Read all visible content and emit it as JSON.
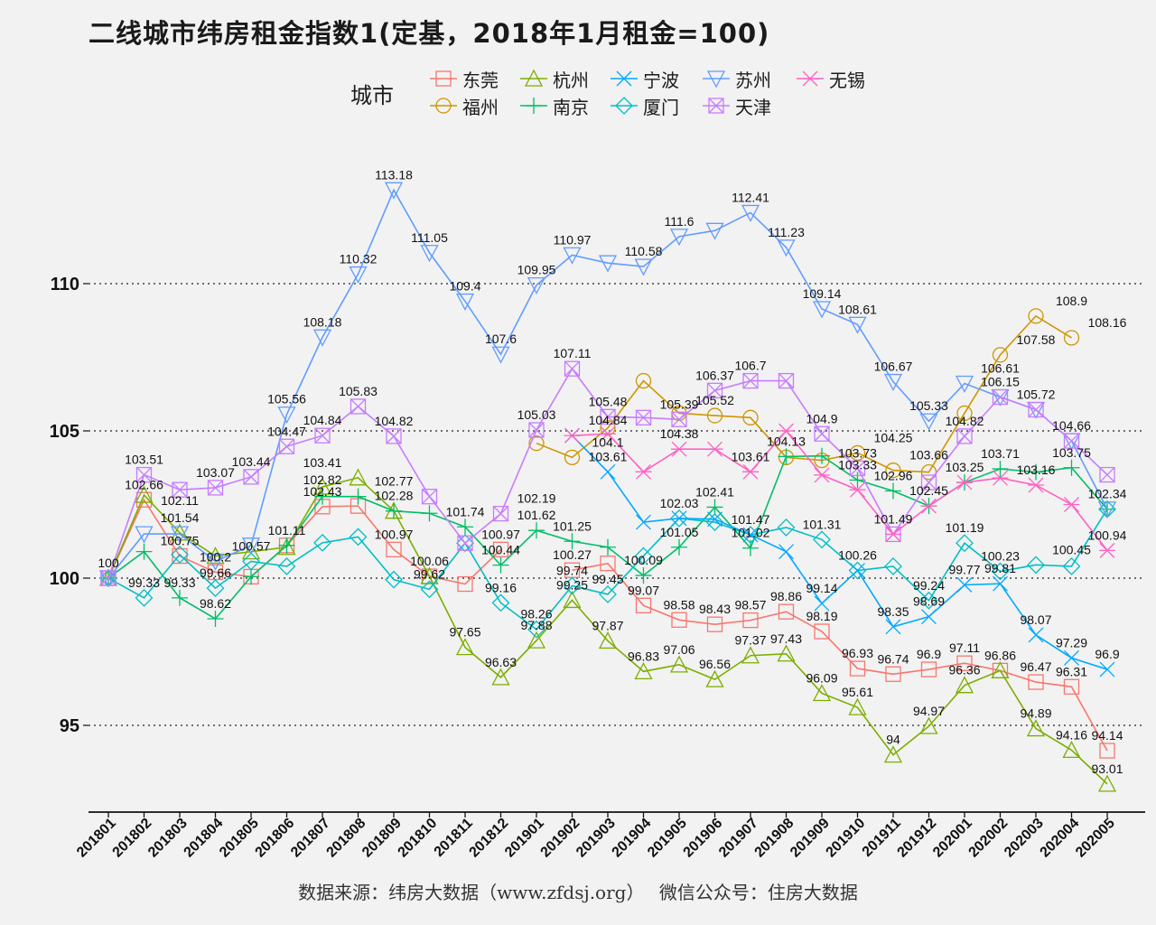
{
  "title": "二线城市纬房租金指数1(定基，2018年1月租金=100)",
  "source": "数据来源：纬房大数据（www.zfdsj.org）　 微信公众号：住房大数据",
  "legend_title": "城市",
  "chart_data": {
    "type": "line",
    "title": "二线城市纬房租金指数1(定基，2018年1月租金=100)",
    "xlabel": "",
    "ylabel": "",
    "ylim": [
      92,
      114
    ],
    "yticks": [
      95,
      100,
      105,
      110
    ],
    "grid": "horizontal dotted",
    "legend_position": "top",
    "x": [
      "201801",
      "201802",
      "201803",
      "201804",
      "201805",
      "201806",
      "201807",
      "201808",
      "201809",
      "201810",
      "201811",
      "201812",
      "201901",
      "201902",
      "201903",
      "201904",
      "201905",
      "201906",
      "201907",
      "201908",
      "201909",
      "201910",
      "201911",
      "201912",
      "202001",
      "202002",
      "202003",
      "202004",
      "202005"
    ],
    "series": [
      {
        "name": "东莞",
        "color": "#F8766D",
        "marker": "square",
        "values": [
          100,
          102.66,
          100.75,
          100.2,
          100.05,
          101.11,
          102.43,
          102.45,
          100.97,
          100.06,
          99.8,
          100.97,
          null,
          100.27,
          100.5,
          99.07,
          98.58,
          98.43,
          98.57,
          98.86,
          98.19,
          96.93,
          96.74,
          96.9,
          97.11,
          96.86,
          96.47,
          96.31,
          94.14
        ]
      },
      {
        "name": "福州",
        "color": "#CD9600",
        "marker": "circle",
        "values": [
          null,
          null,
          null,
          null,
          null,
          null,
          null,
          null,
          null,
          null,
          null,
          null,
          104.58,
          104.1,
          105.1,
          106.7,
          105.6,
          105.52,
          105.45,
          104.1,
          104.0,
          104.25,
          103.66,
          103.6,
          105.6,
          107.58,
          108.9,
          108.16,
          null
        ]
      },
      {
        "name": "杭州",
        "color": "#7CAE00",
        "marker": "triangle",
        "values": [
          100,
          102.82,
          101.54,
          100.75,
          100.9,
          101.05,
          103.1,
          103.41,
          102.28,
          100.06,
          97.65,
          96.63,
          97.88,
          99.25,
          97.87,
          96.83,
          97.06,
          96.56,
          97.37,
          97.43,
          96.09,
          95.61,
          94.0,
          94.97,
          96.36,
          96.86,
          94.89,
          94.16,
          93.01
        ]
      },
      {
        "name": "南京",
        "color": "#00BE67",
        "marker": "plus",
        "values": [
          100,
          100.9,
          99.33,
          98.62,
          100.05,
          101.11,
          102.77,
          102.77,
          102.28,
          102.2,
          101.74,
          100.44,
          101.62,
          101.25,
          101.05,
          100.09,
          101.05,
          102.41,
          101.02,
          104.13,
          104.15,
          103.33,
          102.96,
          102.45,
          103.25,
          103.71,
          103.6,
          103.75,
          102.34
        ]
      },
      {
        "name": "厦门",
        "color": "#00BFC4",
        "marker": "diamond",
        "values": [
          100,
          99.33,
          100.8,
          99.66,
          100.57,
          100.4,
          101.2,
          101.4,
          99.95,
          99.62,
          101.19,
          99.16,
          98.26,
          99.74,
          99.45,
          100.75,
          102.03,
          101.9,
          101.47,
          101.72,
          101.31,
          100.26,
          100.4,
          99.24,
          101.19,
          100.23,
          100.45,
          100.4,
          102.34
        ]
      },
      {
        "name": "宁波",
        "color": "#00A9FF",
        "marker": "x",
        "values": [
          null,
          null,
          null,
          null,
          null,
          null,
          null,
          null,
          null,
          null,
          null,
          null,
          null,
          104.84,
          103.61,
          101.9,
          102.03,
          102.0,
          101.47,
          100.9,
          99.14,
          100.26,
          98.35,
          98.69,
          99.77,
          99.81,
          98.07,
          97.29,
          96.9
        ]
      },
      {
        "name": "苏州",
        "color": "#619CFF",
        "marker": "triangle-down",
        "values": [
          100,
          101.5,
          101.5,
          100.57,
          101.11,
          105.56,
          108.18,
          110.32,
          113.18,
          111.05,
          109.4,
          107.6,
          109.95,
          110.97,
          110.7,
          110.58,
          111.6,
          111.8,
          112.41,
          111.23,
          109.14,
          108.61,
          106.67,
          105.33,
          106.61,
          106.15,
          105.72,
          104.66,
          102.34
        ]
      },
      {
        "name": "天津",
        "color": "#C77CFF",
        "marker": "square-x",
        "values": [
          100,
          103.51,
          103.0,
          103.07,
          103.44,
          104.47,
          104.84,
          105.83,
          104.82,
          102.77,
          101.19,
          102.19,
          105.03,
          107.11,
          105.48,
          105.45,
          105.39,
          106.37,
          106.7,
          106.7,
          104.9,
          103.73,
          101.49,
          103.25,
          104.82,
          106.15,
          105.72,
          104.66,
          103.51
        ]
      },
      {
        "name": "无锡",
        "color": "#FF61C3",
        "marker": "asterisk",
        "values": [
          null,
          null,
          null,
          null,
          null,
          null,
          null,
          null,
          null,
          null,
          null,
          null,
          null,
          104.84,
          104.9,
          103.61,
          104.38,
          104.38,
          103.61,
          105.0,
          103.5,
          103.0,
          101.49,
          102.45,
          103.25,
          103.4,
          103.16,
          102.5,
          100.94
        ]
      }
    ],
    "data_labels": [
      {
        "x": "201801",
        "text": "100",
        "y": 100
      },
      {
        "x": "201802",
        "text": "103.51",
        "y": 103.51
      },
      {
        "x": "201802",
        "text": "102.66",
        "y": 102.66
      },
      {
        "x": "201802",
        "text": "99.33",
        "y": 99.33
      },
      {
        "x": "201803",
        "text": "102.11",
        "y": 102.11
      },
      {
        "x": "201803",
        "text": "101.54",
        "y": 101.54
      },
      {
        "x": "201803",
        "text": "100.75",
        "y": 100.75
      },
      {
        "x": "201803",
        "text": "99.33",
        "y": 99.33
      },
      {
        "x": "201804",
        "text": "103.07",
        "y": 103.07
      },
      {
        "x": "201804",
        "text": "100.2",
        "y": 100.2
      },
      {
        "x": "201804",
        "text": "99.66",
        "y": 99.66
      },
      {
        "x": "201804",
        "text": "98.62",
        "y": 98.62
      },
      {
        "x": "201805",
        "text": "103.44",
        "y": 103.44
      },
      {
        "x": "201805",
        "text": "100.57",
        "y": 100.57
      },
      {
        "x": "201806",
        "text": "105.56",
        "y": 105.56
      },
      {
        "x": "201806",
        "text": "104.47",
        "y": 104.47
      },
      {
        "x": "201806",
        "text": "101.11",
        "y": 101.11
      },
      {
        "x": "201807",
        "text": "108.18",
        "y": 108.18
      },
      {
        "x": "201807",
        "text": "104.84",
        "y": 104.84
      },
      {
        "x": "201807",
        "text": "103.41",
        "y": 103.41
      },
      {
        "x": "201807",
        "text": "102.82",
        "y": 102.82
      },
      {
        "x": "201807",
        "text": "102.43",
        "y": 102.43
      },
      {
        "x": "201808",
        "text": "110.32",
        "y": 110.32
      },
      {
        "x": "201808",
        "text": "105.83",
        "y": 105.83
      },
      {
        "x": "201809",
        "text": "113.18",
        "y": 113.18
      },
      {
        "x": "201809",
        "text": "104.82",
        "y": 104.82
      },
      {
        "x": "201809",
        "text": "102.77",
        "y": 102.77
      },
      {
        "x": "201809",
        "text": "102.28",
        "y": 102.28
      },
      {
        "x": "201809",
        "text": "100.97",
        "y": 100.97
      },
      {
        "x": "201810",
        "text": "111.05",
        "y": 111.05
      },
      {
        "x": "201810",
        "text": "100.06",
        "y": 100.06
      },
      {
        "x": "201810",
        "text": "99.62",
        "y": 99.62
      },
      {
        "x": "201811",
        "text": "109.4",
        "y": 109.4
      },
      {
        "x": "201811",
        "text": "101.74",
        "y": 101.74
      },
      {
        "x": "201811",
        "text": "97.65",
        "y": 97.65
      },
      {
        "x": "201812",
        "text": "107.6",
        "y": 107.6
      },
      {
        "x": "201812",
        "text": "100.97",
        "y": 100.97
      },
      {
        "x": "201812",
        "text": "100.44",
        "y": 100.44
      },
      {
        "x": "201812",
        "text": "99.16",
        "y": 99.16
      },
      {
        "x": "201812",
        "text": "96.63",
        "y": 96.63
      },
      {
        "x": "201901",
        "text": "109.95",
        "y": 109.95
      },
      {
        "x": "201901",
        "text": "105.03",
        "y": 105.03
      },
      {
        "x": "201901",
        "text": "102.19",
        "y": 102.19
      },
      {
        "x": "201901",
        "text": "101.62",
        "y": 101.62
      },
      {
        "x": "201901",
        "text": "98.26",
        "y": 98.26
      },
      {
        "x": "201901",
        "text": "97.88",
        "y": 97.88
      },
      {
        "x": "201902",
        "text": "110.97",
        "y": 110.97
      },
      {
        "x": "201902",
        "text": "107.11",
        "y": 107.11
      },
      {
        "x": "201902",
        "text": "101.25",
        "y": 101.25
      },
      {
        "x": "201902",
        "text": "100.27",
        "y": 100.27
      },
      {
        "x": "201902",
        "text": "99.74",
        "y": 99.74
      },
      {
        "x": "201902",
        "text": "99.25",
        "y": 99.25
      },
      {
        "x": "201903",
        "text": "105.48",
        "y": 105.48
      },
      {
        "x": "201903",
        "text": "104.84",
        "y": 104.84
      },
      {
        "x": "201903",
        "text": "104.1",
        "y": 104.1
      },
      {
        "x": "201903",
        "text": "103.61",
        "y": 103.61
      },
      {
        "x": "201903",
        "text": "99.45",
        "y": 99.45
      },
      {
        "x": "201903",
        "text": "97.87",
        "y": 97.87
      },
      {
        "x": "201904",
        "text": "110.58",
        "y": 110.58
      },
      {
        "x": "201904",
        "text": "100.09",
        "y": 100.09
      },
      {
        "x": "201904",
        "text": "99.07",
        "y": 99.07
      },
      {
        "x": "201904",
        "text": "96.83",
        "y": 96.83
      },
      {
        "x": "201905",
        "text": "111.6",
        "y": 111.6
      },
      {
        "x": "201905",
        "text": "105.39",
        "y": 105.39
      },
      {
        "x": "201905",
        "text": "104.38",
        "y": 104.38
      },
      {
        "x": "201905",
        "text": "102.03",
        "y": 102.03
      },
      {
        "x": "201905",
        "text": "101.05",
        "y": 101.05
      },
      {
        "x": "201905",
        "text": "98.58",
        "y": 98.58
      },
      {
        "x": "201905",
        "text": "97.06",
        "y": 97.06
      },
      {
        "x": "201906",
        "text": "106.37",
        "y": 106.37
      },
      {
        "x": "201906",
        "text": "105.52",
        "y": 105.52
      },
      {
        "x": "201906",
        "text": "102.41",
        "y": 102.41
      },
      {
        "x": "201906",
        "text": "98.43",
        "y": 98.43
      },
      {
        "x": "201906",
        "text": "96.56",
        "y": 96.56
      },
      {
        "x": "201907",
        "text": "112.41",
        "y": 112.41
      },
      {
        "x": "201907",
        "text": "106.7",
        "y": 106.7
      },
      {
        "x": "201907",
        "text": "103.61",
        "y": 103.61
      },
      {
        "x": "201907",
        "text": "101.47",
        "y": 101.47
      },
      {
        "x": "201907",
        "text": "101.02",
        "y": 101.02
      },
      {
        "x": "201907",
        "text": "98.57",
        "y": 98.57
      },
      {
        "x": "201907",
        "text": "97.37",
        "y": 97.37
      },
      {
        "x": "201908",
        "text": "111.23",
        "y": 111.23
      },
      {
        "x": "201908",
        "text": "104.13",
        "y": 104.13
      },
      {
        "x": "201908",
        "text": "98.86",
        "y": 98.86
      },
      {
        "x": "201908",
        "text": "97.43",
        "y": 97.43
      },
      {
        "x": "201909",
        "text": "109.14",
        "y": 109.14
      },
      {
        "x": "201909",
        "text": "104.9",
        "y": 104.9
      },
      {
        "x": "201909",
        "text": "101.31",
        "y": 101.31
      },
      {
        "x": "201909",
        "text": "99.14",
        "y": 99.14
      },
      {
        "x": "201909",
        "text": "98.19",
        "y": 98.19
      },
      {
        "x": "201909",
        "text": "96.09",
        "y": 96.09
      },
      {
        "x": "201910",
        "text": "108.61",
        "y": 108.61
      },
      {
        "x": "201910",
        "text": "103.73",
        "y": 103.73
      },
      {
        "x": "201910",
        "text": "103.33",
        "y": 103.33
      },
      {
        "x": "201910",
        "text": "100.26",
        "y": 100.26
      },
      {
        "x": "201910",
        "text": "96.93",
        "y": 96.93
      },
      {
        "x": "201910",
        "text": "95.61",
        "y": 95.61
      },
      {
        "x": "201911",
        "text": "106.67",
        "y": 106.67
      },
      {
        "x": "201911",
        "text": "104.25",
        "y": 104.25
      },
      {
        "x": "201911",
        "text": "102.96",
        "y": 102.96
      },
      {
        "x": "201911",
        "text": "101.49",
        "y": 101.49
      },
      {
        "x": "201911",
        "text": "98.35",
        "y": 98.35
      },
      {
        "x": "201911",
        "text": "96.74",
        "y": 96.74
      },
      {
        "x": "201911",
        "text": "94",
        "y": 94.0
      },
      {
        "x": "201912",
        "text": "105.33",
        "y": 105.33
      },
      {
        "x": "201912",
        "text": "103.66",
        "y": 103.66
      },
      {
        "x": "201912",
        "text": "102.45",
        "y": 102.45
      },
      {
        "x": "201912",
        "text": "99.24",
        "y": 99.24
      },
      {
        "x": "201912",
        "text": "98.69",
        "y": 98.69
      },
      {
        "x": "201912",
        "text": "96.9",
        "y": 96.9
      },
      {
        "x": "201912",
        "text": "94.97",
        "y": 94.97
      },
      {
        "x": "202001",
        "text": "104.82",
        "y": 104.82
      },
      {
        "x": "202001",
        "text": "103.25",
        "y": 103.25
      },
      {
        "x": "202001",
        "text": "101.19",
        "y": 101.19
      },
      {
        "x": "202001",
        "text": "99.77",
        "y": 99.77
      },
      {
        "x": "202001",
        "text": "97.11",
        "y": 97.11
      },
      {
        "x": "202001",
        "text": "96.36",
        "y": 96.36
      },
      {
        "x": "202002",
        "text": "106.61",
        "y": 106.61
      },
      {
        "x": "202002",
        "text": "106.15",
        "y": 106.15
      },
      {
        "x": "202002",
        "text": "103.71",
        "y": 103.71
      },
      {
        "x": "202002",
        "text": "100.23",
        "y": 100.23
      },
      {
        "x": "202002",
        "text": "99.81",
        "y": 99.81
      },
      {
        "x": "202002",
        "text": "96.86",
        "y": 96.86
      },
      {
        "x": "202003",
        "text": "107.58",
        "y": 107.58
      },
      {
        "x": "202003",
        "text": "105.72",
        "y": 105.72
      },
      {
        "x": "202003",
        "text": "103.16",
        "y": 103.16
      },
      {
        "x": "202003",
        "text": "98.07",
        "y": 98.07
      },
      {
        "x": "202003",
        "text": "96.47",
        "y": 96.47
      },
      {
        "x": "202003",
        "text": "94.89",
        "y": 94.89
      },
      {
        "x": "202004",
        "text": "108.9",
        "y": 108.9
      },
      {
        "x": "202004",
        "text": "104.66",
        "y": 104.66
      },
      {
        "x": "202004",
        "text": "103.75",
        "y": 103.75
      },
      {
        "x": "202004",
        "text": "100.45",
        "y": 100.45
      },
      {
        "x": "202004",
        "text": "97.29",
        "y": 97.29
      },
      {
        "x": "202004",
        "text": "96.31",
        "y": 96.31
      },
      {
        "x": "202004",
        "text": "94.16",
        "y": 94.16
      },
      {
        "x": "202005",
        "text": "108.16",
        "y": 108.16
      },
      {
        "x": "202005",
        "text": "102.34",
        "y": 102.34
      },
      {
        "x": "202005",
        "text": "100.94",
        "y": 100.94
      },
      {
        "x": "202005",
        "text": "96.9",
        "y": 96.9
      },
      {
        "x": "202005",
        "text": "94.14",
        "y": 94.14
      },
      {
        "x": "202005",
        "text": "93.01",
        "y": 93.01
      }
    ]
  }
}
